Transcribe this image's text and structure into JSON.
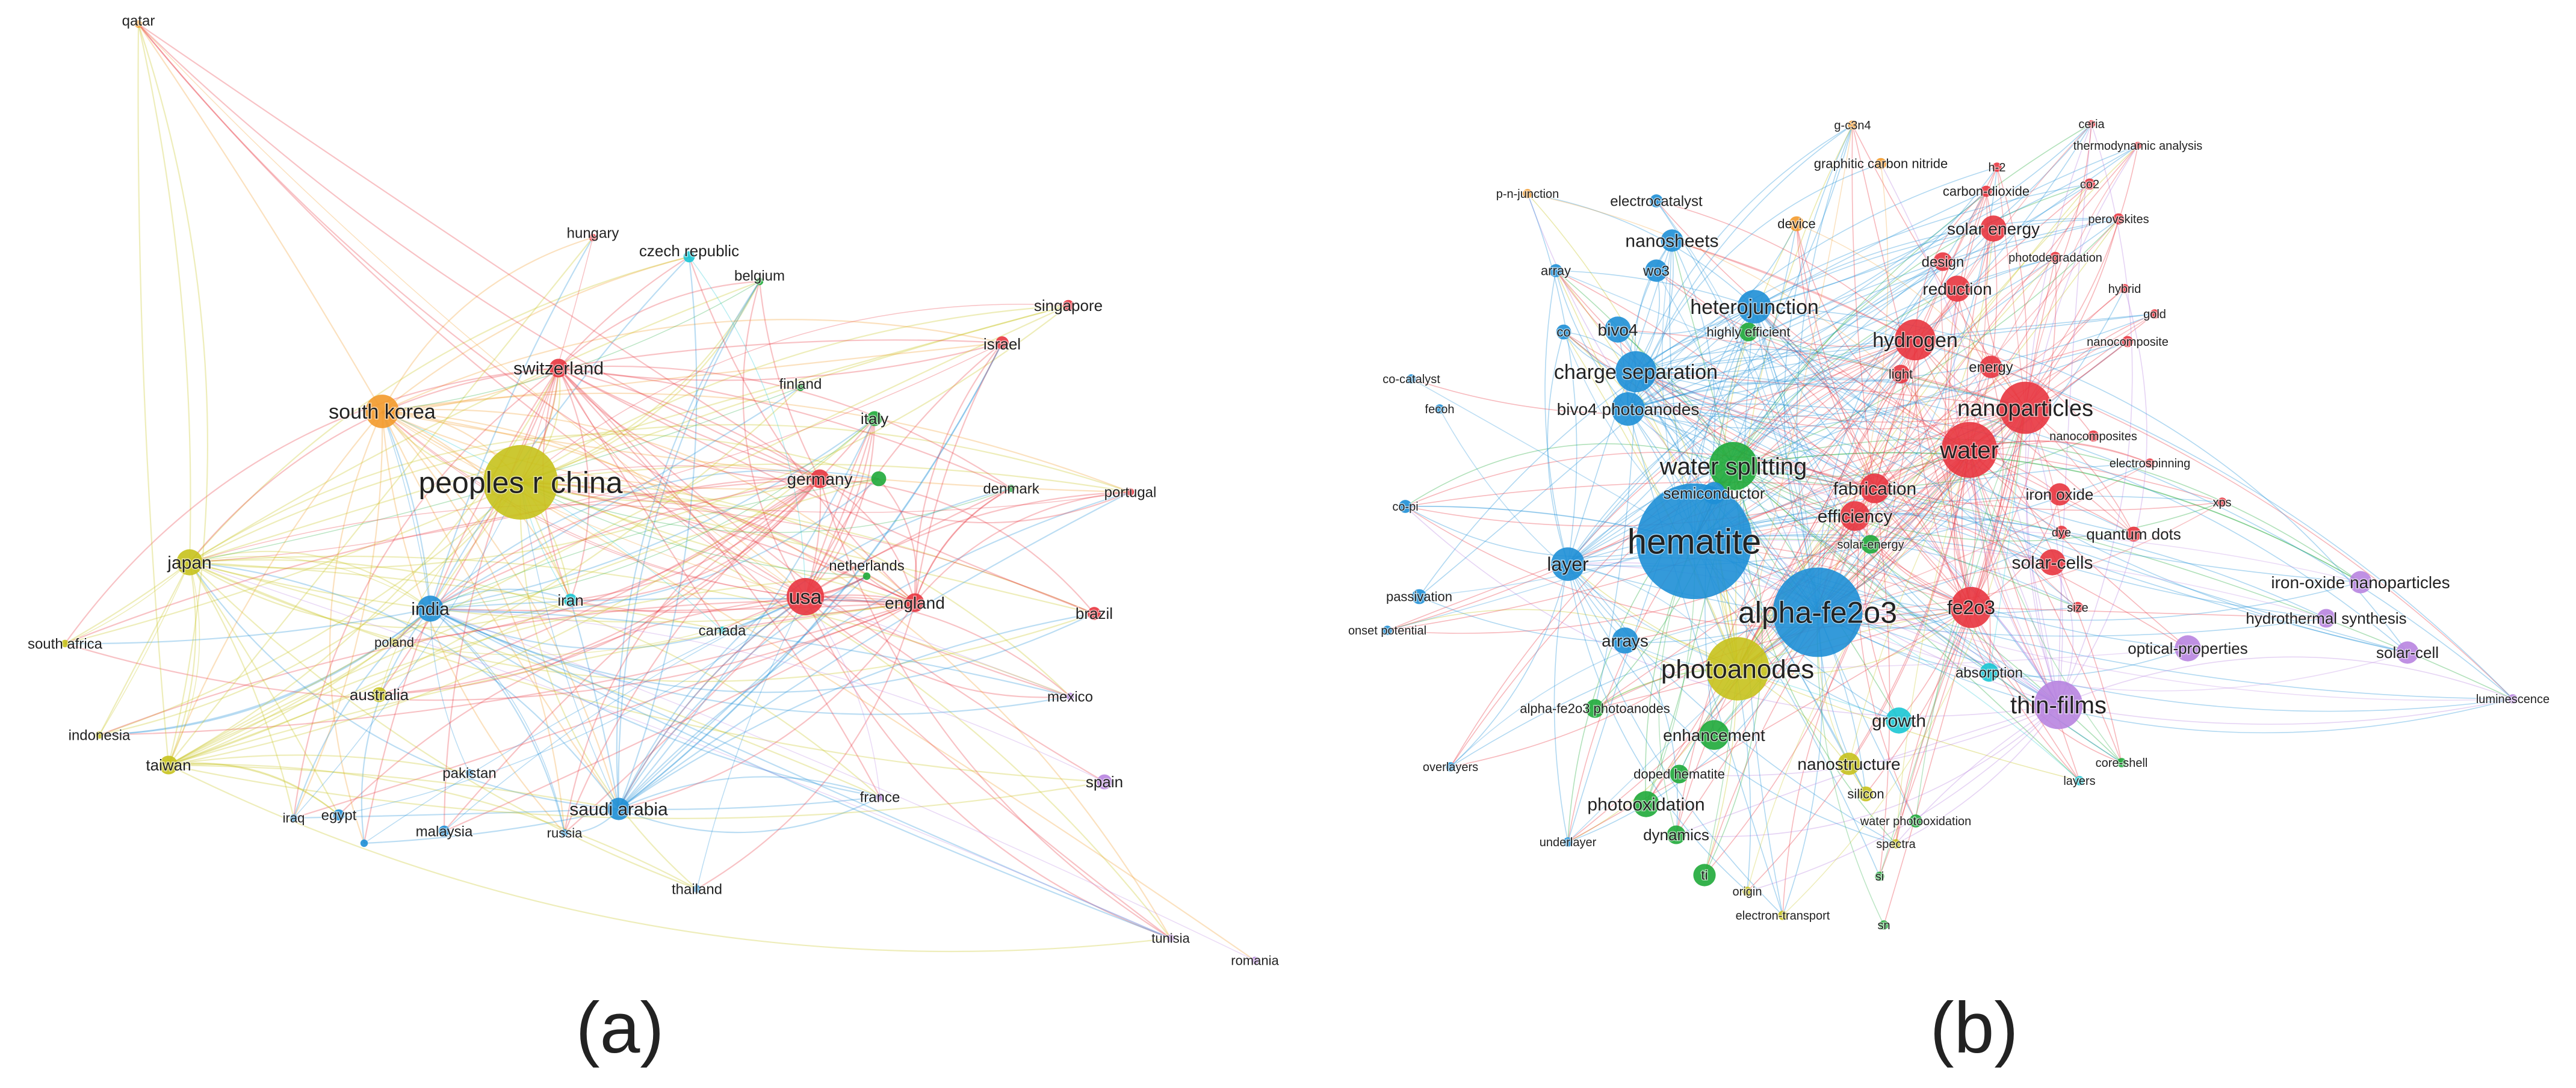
{
  "colors": {
    "red": "#e8353f",
    "green": "#1faa3a",
    "blue": "#1e8fd6",
    "yellow": "#c6c21c",
    "purple": "#b884e0",
    "orange": "#f39a2b",
    "cyan": "#19c6d4"
  },
  "panels": [
    {
      "id": "a",
      "label": "(a)",
      "nodes": [
        {
          "name": "qatar",
          "color": "orange",
          "size": 4
        },
        {
          "name": "hungary",
          "color": "red",
          "size": 4
        },
        {
          "name": "czech republic",
          "color": "cyan",
          "size": 6
        },
        {
          "name": "belgium",
          "color": "green",
          "size": 4
        },
        {
          "name": "singapore",
          "color": "red",
          "size": 6
        },
        {
          "name": "israel",
          "color": "red",
          "size": 7
        },
        {
          "name": "switzerland",
          "color": "red",
          "size": 10
        },
        {
          "name": "south korea",
          "color": "orange",
          "size": 18
        },
        {
          "name": "finland",
          "color": "green",
          "size": 4
        },
        {
          "name": "italy",
          "color": "green",
          "size": 8
        },
        {
          "name": "peoples r china",
          "color": "yellow",
          "size": 40
        },
        {
          "name": "germany",
          "color": "red",
          "size": 10
        },
        {
          "name": "",
          "color": "green",
          "size": 8
        },
        {
          "name": "denmark",
          "color": "green",
          "size": 4
        },
        {
          "name": "portugal",
          "color": "red",
          "size": 4
        },
        {
          "name": "japan",
          "color": "yellow",
          "size": 14
        },
        {
          "name": "netherlands",
          "color": "green",
          "size": 4
        },
        {
          "name": "india",
          "color": "blue",
          "size": 14
        },
        {
          "name": "iran",
          "color": "cyan",
          "size": 7
        },
        {
          "name": "usa",
          "color": "red",
          "size": 20
        },
        {
          "name": "england",
          "color": "red",
          "size": 10
        },
        {
          "name": "canada",
          "color": "cyan",
          "size": 4
        },
        {
          "name": "brazil",
          "color": "red",
          "size": 7
        },
        {
          "name": "poland",
          "color": "yellow",
          "size": 4
        },
        {
          "name": "south africa",
          "color": "yellow",
          "size": 4
        },
        {
          "name": "australia",
          "color": "yellow",
          "size": 8
        },
        {
          "name": "mexico",
          "color": "purple",
          "size": 4
        },
        {
          "name": "indonesia",
          "color": "yellow",
          "size": 4
        },
        {
          "name": "taiwan",
          "color": "yellow",
          "size": 10
        },
        {
          "name": "pakistan",
          "color": "blue",
          "size": 4
        },
        {
          "name": "iraq",
          "color": "blue",
          "size": 4
        },
        {
          "name": "egypt",
          "color": "blue",
          "size": 6
        },
        {
          "name": "",
          "color": "blue",
          "size": 4
        },
        {
          "name": "malaysia",
          "color": "blue",
          "size": 6
        },
        {
          "name": "russia",
          "color": "blue",
          "size": 4
        },
        {
          "name": "saudi arabia",
          "color": "blue",
          "size": 12
        },
        {
          "name": "france",
          "color": "purple",
          "size": 4
        },
        {
          "name": "spain",
          "color": "purple",
          "size": 8
        },
        {
          "name": "thailand",
          "color": "blue",
          "size": 4
        },
        {
          "name": "tunisia",
          "color": "purple",
          "size": 4
        },
        {
          "name": "romania",
          "color": "purple",
          "size": 4
        }
      ]
    },
    {
      "id": "b",
      "label": "(b)",
      "nodes": [
        {
          "name": "g-c3n4",
          "color": "orange",
          "size": 5
        },
        {
          "name": "ceria",
          "color": "red",
          "size": 4
        },
        {
          "name": "thermodynamic analysis",
          "color": "red",
          "size": 4
        },
        {
          "name": "graphitic carbon nitride",
          "color": "orange",
          "size": 6
        },
        {
          "name": "h-2",
          "color": "red",
          "size": 5
        },
        {
          "name": "co2",
          "color": "red",
          "size": 6
        },
        {
          "name": "p-n-junction",
          "color": "orange",
          "size": 5
        },
        {
          "name": "electrocatalyst",
          "color": "blue",
          "size": 7
        },
        {
          "name": "carbon-dioxide",
          "color": "red",
          "size": 6
        },
        {
          "name": "perovskites",
          "color": "red",
          "size": 6
        },
        {
          "name": "device",
          "color": "orange",
          "size": 8
        },
        {
          "name": "solar energy",
          "color": "red",
          "size": 14
        },
        {
          "name": "nanosheets",
          "color": "blue",
          "size": 12
        },
        {
          "name": "design",
          "color": "red",
          "size": 10
        },
        {
          "name": "photodegradation",
          "color": "red",
          "size": 6
        },
        {
          "name": "array",
          "color": "blue",
          "size": 7
        },
        {
          "name": "wo3",
          "color": "blue",
          "size": 12
        },
        {
          "name": "hybrid",
          "color": "red",
          "size": 5
        },
        {
          "name": "reduction",
          "color": "red",
          "size": 14
        },
        {
          "name": "gold",
          "color": "red",
          "size": 5
        },
        {
          "name": "heterojunction",
          "color": "blue",
          "size": 18
        },
        {
          "name": "bivo4",
          "color": "blue",
          "size": 14
        },
        {
          "name": "co",
          "color": "blue",
          "size": 8
        },
        {
          "name": "highly efficient",
          "color": "green",
          "size": 10
        },
        {
          "name": "hydrogen",
          "color": "red",
          "size": 22
        },
        {
          "name": "nanocomposite",
          "color": "red",
          "size": 6
        },
        {
          "name": "energy",
          "color": "red",
          "size": 12
        },
        {
          "name": "light",
          "color": "red",
          "size": 10
        },
        {
          "name": "charge separation",
          "color": "blue",
          "size": 22
        },
        {
          "name": "co-catalyst",
          "color": "blue",
          "size": 5
        },
        {
          "name": "nanoparticles",
          "color": "red",
          "size": 28
        },
        {
          "name": "bivo4 photoanodes",
          "color": "blue",
          "size": 18
        },
        {
          "name": "fecoh",
          "color": "blue",
          "size": 5
        },
        {
          "name": "water",
          "color": "red",
          "size": 30
        },
        {
          "name": "nanocomposites",
          "color": "red",
          "size": 6
        },
        {
          "name": "water splitting",
          "color": "green",
          "size": 26
        },
        {
          "name": "electrospinning",
          "color": "red",
          "size": 5
        },
        {
          "name": "fabrication",
          "color": "red",
          "size": 16
        },
        {
          "name": "iron oxide",
          "color": "red",
          "size": 12
        },
        {
          "name": "semiconductor",
          "color": "blue",
          "size": 12
        },
        {
          "name": "xps",
          "color": "red",
          "size": 5
        },
        {
          "name": "co-pi",
          "color": "blue",
          "size": 7
        },
        {
          "name": "efficiency",
          "color": "red",
          "size": 16
        },
        {
          "name": "dye",
          "color": "red",
          "size": 7
        },
        {
          "name": "quantum dots",
          "color": "red",
          "size": 8
        },
        {
          "name": "hematite",
          "color": "blue",
          "size": 62
        },
        {
          "name": "solar-energy",
          "color": "green",
          "size": 10
        },
        {
          "name": "layer",
          "color": "blue",
          "size": 18
        },
        {
          "name": "solar-cells",
          "color": "red",
          "size": 14
        },
        {
          "name": "iron-oxide nanoparticles",
          "color": "purple",
          "size": 12
        },
        {
          "name": "passivation",
          "color": "blue",
          "size": 8
        },
        {
          "name": "alpha-fe2o3",
          "color": "blue",
          "size": 48
        },
        {
          "name": "fe2o3",
          "color": "red",
          "size": 22
        },
        {
          "name": "size",
          "color": "red",
          "size": 6
        },
        {
          "name": "hydrothermal synthesis",
          "color": "purple",
          "size": 10
        },
        {
          "name": "onset potential",
          "color": "blue",
          "size": 5
        },
        {
          "name": "arrays",
          "color": "blue",
          "size": 14
        },
        {
          "name": "optical-properties",
          "color": "purple",
          "size": 14
        },
        {
          "name": "solar-cell",
          "color": "purple",
          "size": 12
        },
        {
          "name": "photoanodes",
          "color": "yellow",
          "size": 34
        },
        {
          "name": "absorption",
          "color": "cyan",
          "size": 10
        },
        {
          "name": "luminescence",
          "color": "purple",
          "size": 5
        },
        {
          "name": "alpha-fe2o3 photoanodes",
          "color": "green",
          "size": 10
        },
        {
          "name": "thin-films",
          "color": "purple",
          "size": 26
        },
        {
          "name": "growth",
          "color": "cyan",
          "size": 14
        },
        {
          "name": "enhancement",
          "color": "green",
          "size": 16
        },
        {
          "name": "overlayers",
          "color": "blue",
          "size": 5
        },
        {
          "name": "core-shell",
          "color": "green",
          "size": 5
        },
        {
          "name": "nanostructure",
          "color": "yellow",
          "size": 12
        },
        {
          "name": "doped hematite",
          "color": "green",
          "size": 10
        },
        {
          "name": "layers",
          "color": "cyan",
          "size": 5
        },
        {
          "name": "silicon",
          "color": "yellow",
          "size": 8
        },
        {
          "name": "photooxidation",
          "color": "green",
          "size": 14
        },
        {
          "name": "water photooxidation",
          "color": "green",
          "size": 7
        },
        {
          "name": "dynamics",
          "color": "green",
          "size": 10
        },
        {
          "name": "underlayer",
          "color": "blue",
          "size": 5
        },
        {
          "name": "spectra",
          "color": "yellow",
          "size": 5
        },
        {
          "name": "ti",
          "color": "green",
          "size": 12
        },
        {
          "name": "si",
          "color": "green",
          "size": 5
        },
        {
          "name": "origin",
          "color": "yellow",
          "size": 5
        },
        {
          "name": "electron-transport",
          "color": "yellow",
          "size": 5
        },
        {
          "name": "sn",
          "color": "green",
          "size": 5
        }
      ]
    }
  ]
}
